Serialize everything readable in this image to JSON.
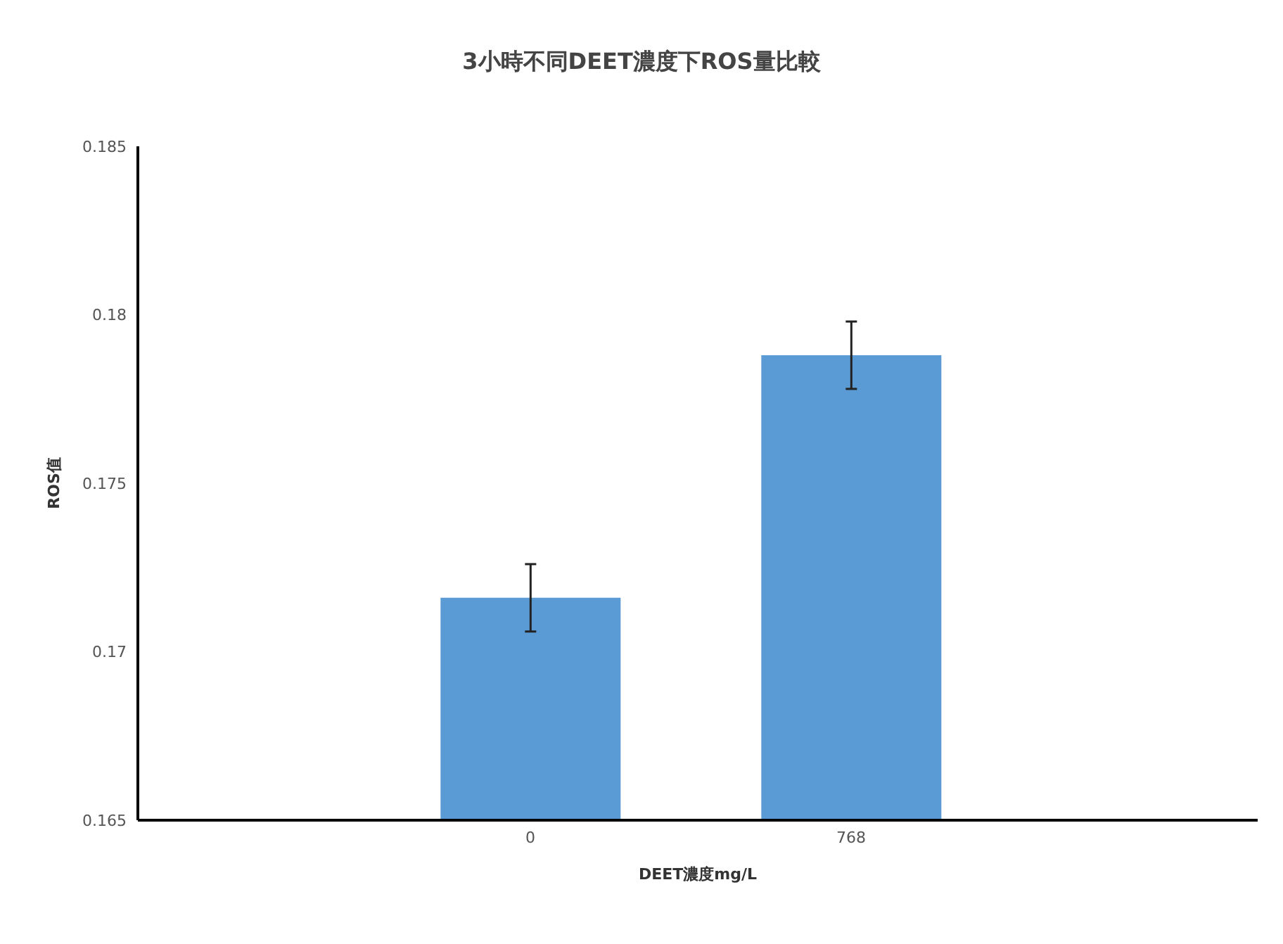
{
  "chart_data": {
    "type": "bar",
    "title": "3小時不同DEET濃度下ROS量比較",
    "xlabel": "DEET濃度mg/L",
    "ylabel": "ROS值",
    "categories": [
      "0",
      "768"
    ],
    "values": [
      0.1716,
      0.1788
    ],
    "errors": [
      0.001,
      0.001
    ],
    "color": "#5b9bd5",
    "ylim": [
      0.165,
      0.185
    ],
    "yticks": [
      0.165,
      0.17,
      0.175,
      0.18,
      0.185
    ],
    "grid": false,
    "legend": false
  }
}
